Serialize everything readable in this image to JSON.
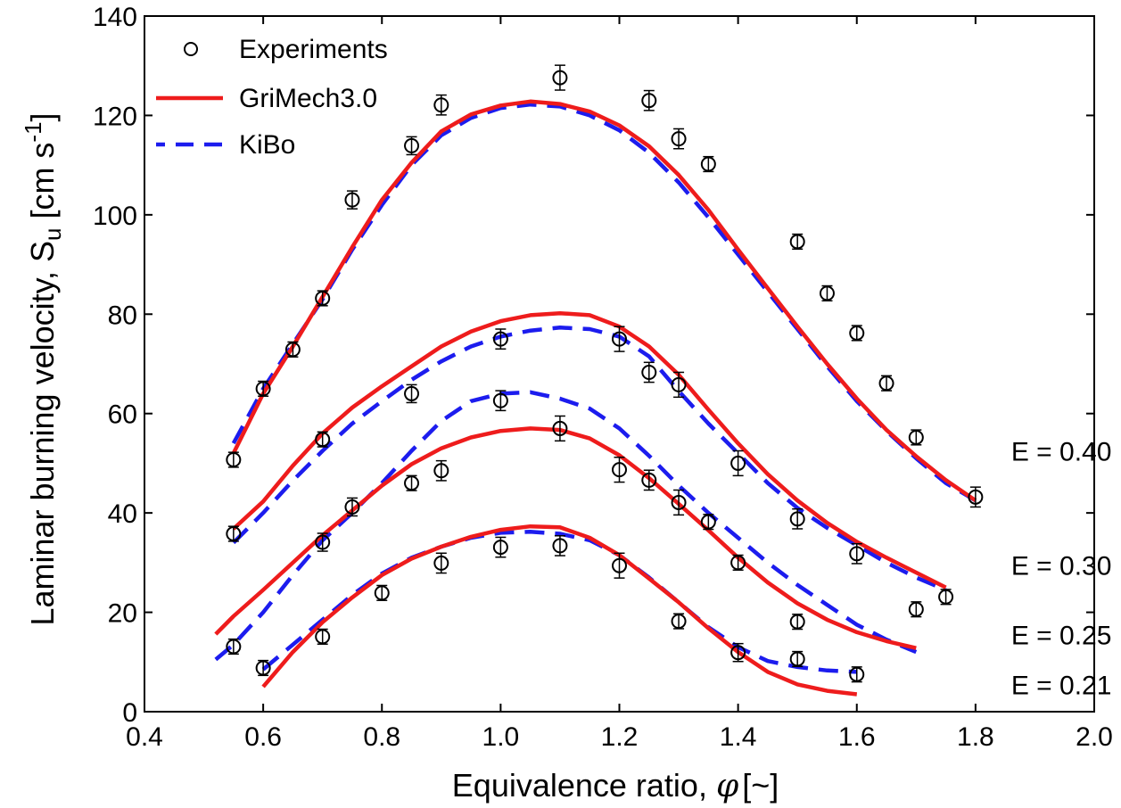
{
  "chart_data": {
    "type": "scatter",
    "xlabel": "Equivalence ratio, ",
    "xlabel_symbol": "φ",
    "xlabel_unit": "[~]",
    "ylabel_main": "Laminar burning velocity, S",
    "ylabel_sub": "u",
    "ylabel_unit_a": " [cm s",
    "ylabel_sup": "-1",
    "ylabel_unit_b": "]",
    "xlim": [
      0.4,
      2.0
    ],
    "ylim": [
      0,
      140
    ],
    "x_ticks": [
      "0.4",
      "0.6",
      "0.8",
      "1.0",
      "1.2",
      "1.4",
      "1.6",
      "1.8",
      "2.0"
    ],
    "y_ticks": [
      "0",
      "20",
      "40",
      "60",
      "80",
      "100",
      "120",
      "140"
    ],
    "grid": false,
    "legend_position": "top-left",
    "legend": [
      "Experiments",
      "GriMech3.0",
      "KiBo"
    ],
    "colors": {
      "experiments": "#000000",
      "grimech": "#ee1c1c",
      "kibo": "#1c1cee"
    },
    "annotations": [
      {
        "text": "E = 0.40",
        "x": 1.86,
        "y": 52.5
      },
      {
        "text": "E = 0.30",
        "x": 1.86,
        "y": 29.5
      },
      {
        "text": "E = 0.25",
        "x": 1.86,
        "y": 15.5
      },
      {
        "text": "E = 0.21",
        "x": 1.86,
        "y": 5.5
      }
    ],
    "series": [
      {
        "name": "Experiments",
        "kind": "points",
        "points": [
          [
            0.55,
            50.7,
            1.5
          ],
          [
            0.6,
            65.0,
            1.5
          ],
          [
            0.65,
            72.9,
            1.5
          ],
          [
            0.7,
            83.2,
            1.5
          ],
          [
            0.75,
            103.0,
            1.8
          ],
          [
            0.85,
            113.9,
            1.8
          ],
          [
            0.9,
            122.1,
            2.0
          ],
          [
            1.1,
            127.6,
            2.5
          ],
          [
            1.25,
            123.0,
            2.0
          ],
          [
            1.3,
            115.3,
            2.0
          ],
          [
            1.35,
            110.2,
            1.5
          ],
          [
            1.5,
            94.6,
            1.5
          ],
          [
            1.55,
            84.2,
            1.5
          ],
          [
            1.6,
            76.2,
            1.5
          ],
          [
            1.65,
            66.1,
            1.5
          ],
          [
            1.7,
            55.2,
            1.5
          ],
          [
            1.8,
            43.2,
            2.0
          ],
          [
            0.55,
            35.8,
            1.5
          ],
          [
            0.7,
            54.8,
            1.5
          ],
          [
            0.85,
            64.0,
            1.8
          ],
          [
            1.0,
            75.0,
            2.0
          ],
          [
            1.2,
            75.0,
            2.5
          ],
          [
            1.25,
            68.3,
            2.0
          ],
          [
            1.3,
            65.8,
            2.5
          ],
          [
            1.4,
            50.0,
            2.5
          ],
          [
            1.5,
            38.8,
            2.0
          ],
          [
            1.6,
            31.8,
            2.0
          ],
          [
            1.7,
            20.6,
            1.5
          ],
          [
            1.75,
            23.1,
            1.5
          ],
          [
            0.7,
            34.1,
            1.8
          ],
          [
            0.75,
            41.2,
            1.8
          ],
          [
            0.85,
            46.0,
            1.5
          ],
          [
            0.9,
            48.5,
            2.0
          ],
          [
            1.0,
            62.6,
            2.0
          ],
          [
            1.1,
            57.0,
            2.5
          ],
          [
            1.2,
            48.7,
            2.5
          ],
          [
            1.25,
            46.6,
            2.0
          ],
          [
            1.3,
            42.1,
            2.5
          ],
          [
            1.35,
            38.2,
            1.5
          ],
          [
            1.4,
            30.0,
            1.5
          ],
          [
            1.5,
            18.1,
            1.5
          ],
          [
            0.55,
            13.1,
            1.5
          ],
          [
            0.6,
            8.8,
            1.5
          ],
          [
            0.7,
            15.1,
            1.5
          ],
          [
            0.8,
            23.9,
            1.5
          ],
          [
            0.9,
            29.9,
            2.0
          ],
          [
            1.0,
            33.1,
            2.0
          ],
          [
            1.1,
            33.4,
            2.0
          ],
          [
            1.2,
            29.4,
            2.5
          ],
          [
            1.3,
            18.2,
            1.5
          ],
          [
            1.4,
            11.9,
            1.8
          ],
          [
            1.5,
            10.6,
            1.5
          ],
          [
            1.6,
            7.5,
            1.5
          ]
        ]
      },
      {
        "name": "GriMech3.0",
        "kind": "solid",
        "curves": [
          [
            [
              0.55,
              52.0
            ],
            [
              0.6,
              64.0
            ],
            [
              0.65,
              73.5
            ],
            [
              0.7,
              83.5
            ],
            [
              0.75,
              93.5
            ],
            [
              0.8,
              103.0
            ],
            [
              0.85,
              110.5
            ],
            [
              0.9,
              116.8
            ],
            [
              0.95,
              120.2
            ],
            [
              1.0,
              122.0
            ],
            [
              1.05,
              122.8
            ],
            [
              1.1,
              122.3
            ],
            [
              1.15,
              120.8
            ],
            [
              1.2,
              118.0
            ],
            [
              1.25,
              113.8
            ],
            [
              1.3,
              108.0
            ],
            [
              1.35,
              101.0
            ],
            [
              1.4,
              93.0
            ],
            [
              1.45,
              85.2
            ],
            [
              1.5,
              77.5
            ],
            [
              1.55,
              70.0
            ],
            [
              1.6,
              63.0
            ],
            [
              1.65,
              56.7
            ],
            [
              1.7,
              51.4
            ],
            [
              1.75,
              46.6
            ],
            [
              1.8,
              42.5
            ]
          ],
          [
            [
              0.55,
              36.8
            ],
            [
              0.6,
              42.3
            ],
            [
              0.65,
              49.5
            ],
            [
              0.7,
              56.0
            ],
            [
              0.75,
              61.2
            ],
            [
              0.8,
              65.5
            ],
            [
              0.85,
              69.5
            ],
            [
              0.9,
              73.5
            ],
            [
              0.95,
              76.5
            ],
            [
              1.0,
              78.6
            ],
            [
              1.05,
              79.8
            ],
            [
              1.1,
              80.2
            ],
            [
              1.15,
              79.8
            ],
            [
              1.2,
              77.5
            ],
            [
              1.25,
              73.5
            ],
            [
              1.3,
              67.8
            ],
            [
              1.35,
              60.8
            ],
            [
              1.4,
              54.0
            ],
            [
              1.45,
              47.8
            ],
            [
              1.5,
              42.5
            ],
            [
              1.55,
              38.0
            ],
            [
              1.6,
              34.2
            ],
            [
              1.65,
              31.0
            ],
            [
              1.7,
              28.0
            ],
            [
              1.75,
              25.0
            ]
          ],
          [
            [
              0.52,
              15.6
            ],
            [
              0.55,
              19.2
            ],
            [
              0.6,
              24.5
            ],
            [
              0.65,
              30.0
            ],
            [
              0.7,
              35.5
            ],
            [
              0.75,
              40.5
            ],
            [
              0.8,
              45.5
            ],
            [
              0.85,
              49.8
            ],
            [
              0.9,
              53.0
            ],
            [
              0.95,
              55.2
            ],
            [
              1.0,
              56.5
            ],
            [
              1.05,
              57.0
            ],
            [
              1.1,
              56.7
            ],
            [
              1.15,
              55.0
            ],
            [
              1.2,
              51.6
            ],
            [
              1.25,
              47.0
            ],
            [
              1.3,
              41.8
            ],
            [
              1.35,
              36.5
            ],
            [
              1.4,
              31.0
            ],
            [
              1.45,
              26.0
            ],
            [
              1.5,
              21.8
            ],
            [
              1.55,
              18.5
            ],
            [
              1.6,
              16.0
            ],
            [
              1.65,
              14.2
            ],
            [
              1.7,
              12.8
            ]
          ],
          [
            [
              0.6,
              5.0
            ],
            [
              0.65,
              12.0
            ],
            [
              0.7,
              18.0
            ],
            [
              0.75,
              23.0
            ],
            [
              0.8,
              27.5
            ],
            [
              0.85,
              30.8
            ],
            [
              0.9,
              33.2
            ],
            [
              0.95,
              35.2
            ],
            [
              1.0,
              36.6
            ],
            [
              1.05,
              37.3
            ],
            [
              1.1,
              37.1
            ],
            [
              1.15,
              35.0
            ],
            [
              1.2,
              31.5
            ],
            [
              1.25,
              26.8
            ],
            [
              1.3,
              22.0
            ],
            [
              1.35,
              16.8
            ],
            [
              1.4,
              12.0
            ],
            [
              1.45,
              8.0
            ],
            [
              1.5,
              5.5
            ],
            [
              1.55,
              4.2
            ],
            [
              1.6,
              3.5
            ]
          ]
        ]
      },
      {
        "name": "KiBo",
        "kind": "dashed",
        "curves": [
          [
            [
              0.55,
              54.0
            ],
            [
              0.6,
              65.0
            ],
            [
              0.65,
              74.0
            ],
            [
              0.7,
              83.0
            ],
            [
              0.75,
              93.0
            ],
            [
              0.8,
              102.0
            ],
            [
              0.85,
              110.0
            ],
            [
              0.9,
              116.0
            ],
            [
              0.95,
              119.5
            ],
            [
              1.0,
              121.5
            ],
            [
              1.05,
              122.2
            ],
            [
              1.1,
              121.8
            ],
            [
              1.15,
              120.0
            ],
            [
              1.2,
              117.0
            ],
            [
              1.25,
              112.5
            ],
            [
              1.3,
              106.5
            ],
            [
              1.35,
              99.5
            ],
            [
              1.4,
              92.0
            ],
            [
              1.45,
              84.5
            ],
            [
              1.5,
              77.0
            ],
            [
              1.55,
              69.5
            ],
            [
              1.6,
              62.5
            ],
            [
              1.65,
              56.5
            ],
            [
              1.7,
              51.0
            ],
            [
              1.75,
              46.0
            ],
            [
              1.8,
              42.5
            ]
          ],
          [
            [
              0.55,
              34.0
            ],
            [
              0.6,
              40.0
            ],
            [
              0.65,
              46.5
            ],
            [
              0.7,
              52.5
            ],
            [
              0.75,
              58.0
            ],
            [
              0.8,
              62.5
            ],
            [
              0.85,
              66.8
            ],
            [
              0.9,
              70.5
            ],
            [
              0.95,
              73.5
            ],
            [
              1.0,
              75.5
            ],
            [
              1.05,
              76.7
            ],
            [
              1.1,
              77.3
            ],
            [
              1.15,
              77.0
            ],
            [
              1.2,
              75.5
            ],
            [
              1.25,
              71.5
            ],
            [
              1.3,
              64.5
            ],
            [
              1.35,
              58.0
            ],
            [
              1.4,
              52.0
            ],
            [
              1.45,
              46.0
            ],
            [
              1.5,
              41.0
            ],
            [
              1.55,
              37.0
            ],
            [
              1.6,
              33.5
            ],
            [
              1.65,
              30.0
            ],
            [
              1.7,
              27.0
            ],
            [
              1.75,
              24.5
            ]
          ],
          [
            [
              0.52,
              10.5
            ],
            [
              0.55,
              13.5
            ],
            [
              0.6,
              20.0
            ],
            [
              0.65,
              27.5
            ],
            [
              0.7,
              34.5
            ],
            [
              0.75,
              40.0
            ],
            [
              0.8,
              46.0
            ],
            [
              0.85,
              52.5
            ],
            [
              0.9,
              58.5
            ],
            [
              0.95,
              62.5
            ],
            [
              1.0,
              64.0
            ],
            [
              1.05,
              64.3
            ],
            [
              1.1,
              63.0
            ],
            [
              1.15,
              61.0
            ],
            [
              1.2,
              57.0
            ],
            [
              1.25,
              51.5
            ],
            [
              1.3,
              45.5
            ],
            [
              1.35,
              40.0
            ],
            [
              1.4,
              35.0
            ],
            [
              1.45,
              30.0
            ],
            [
              1.5,
              25.5
            ],
            [
              1.55,
              21.5
            ],
            [
              1.6,
              17.5
            ],
            [
              1.65,
              14.5
            ],
            [
              1.7,
              12.0
            ]
          ],
          [
            [
              0.6,
              8.5
            ],
            [
              0.65,
              13.5
            ],
            [
              0.7,
              18.5
            ],
            [
              0.75,
              23.5
            ],
            [
              0.8,
              27.8
            ],
            [
              0.85,
              31.0
            ],
            [
              0.9,
              33.2
            ],
            [
              0.95,
              35.0
            ],
            [
              1.0,
              36.0
            ],
            [
              1.05,
              36.2
            ],
            [
              1.1,
              35.8
            ],
            [
              1.15,
              34.5
            ],
            [
              1.2,
              31.5
            ],
            [
              1.25,
              27.0
            ],
            [
              1.3,
              22.0
            ],
            [
              1.35,
              17.0
            ],
            [
              1.4,
              13.0
            ],
            [
              1.45,
              10.2
            ],
            [
              1.5,
              9.0
            ],
            [
              1.55,
              8.3
            ],
            [
              1.6,
              8.0
            ]
          ]
        ]
      }
    ]
  }
}
